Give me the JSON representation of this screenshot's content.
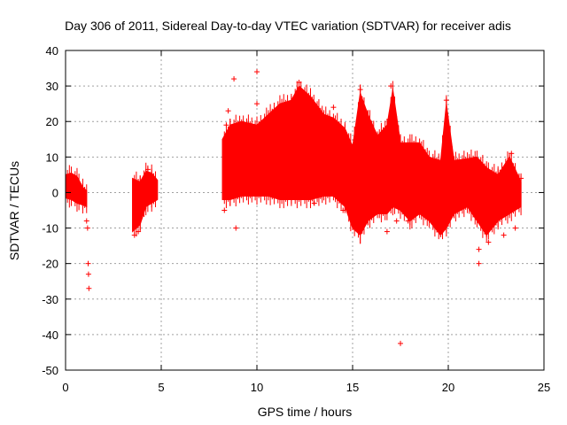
{
  "chart_data": {
    "type": "scatter",
    "title": "Day 306 of 2011, Sidereal Day-to-day VTEC variation (SDTVAR) for receiver adis",
    "xlabel": "GPS time / hours",
    "ylabel": "SDTVAR / TECUs",
    "xlim": [
      0,
      25
    ],
    "ylim": [
      -50,
      40
    ],
    "xticks": [
      0,
      5,
      10,
      15,
      20,
      25
    ],
    "yticks": [
      -50,
      -40,
      -30,
      -20,
      -10,
      0,
      10,
      20,
      30,
      40
    ],
    "grid": true,
    "series_color": "#ff0000",
    "envelope": [
      {
        "x": 0.0,
        "lo": -1.5,
        "hi": 5.0
      },
      {
        "x": 0.3,
        "lo": -2.0,
        "hi": 5.5
      },
      {
        "x": 0.6,
        "lo": -3.0,
        "hi": 4.5
      },
      {
        "x": 0.9,
        "lo": -3.5,
        "hi": 1.5
      },
      {
        "x": 1.1,
        "lo": -4.0,
        "hi": 0.5
      },
      {
        "gap": true
      },
      {
        "x": 3.5,
        "lo": -11.0,
        "hi": 4.0
      },
      {
        "x": 3.9,
        "lo": -9.0,
        "hi": 3.0
      },
      {
        "x": 4.2,
        "lo": -4.0,
        "hi": 6.0
      },
      {
        "x": 4.5,
        "lo": -3.0,
        "hi": 5.5
      },
      {
        "x": 4.8,
        "lo": -2.0,
        "hi": 3.5
      },
      {
        "gap": true
      },
      {
        "x": 8.2,
        "lo": -2.0,
        "hi": 15.0
      },
      {
        "x": 8.6,
        "lo": -2.0,
        "hi": 19.0
      },
      {
        "x": 9.2,
        "lo": -1.0,
        "hi": 20.0
      },
      {
        "x": 10.0,
        "lo": -1.0,
        "hi": 19.0
      },
      {
        "x": 10.6,
        "lo": -1.0,
        "hi": 22.0
      },
      {
        "x": 11.2,
        "lo": -2.0,
        "hi": 25.0
      },
      {
        "x": 11.8,
        "lo": -2.0,
        "hi": 26.0
      },
      {
        "x": 12.2,
        "lo": -2.0,
        "hi": 30.0
      },
      {
        "x": 12.8,
        "lo": -2.0,
        "hi": 27.0
      },
      {
        "x": 13.5,
        "lo": -1.0,
        "hi": 22.0
      },
      {
        "x": 14.0,
        "lo": -1.0,
        "hi": 21.0
      },
      {
        "x": 14.6,
        "lo": -4.0,
        "hi": 18.0
      },
      {
        "x": 15.0,
        "lo": -10.0,
        "hi": 13.0
      },
      {
        "x": 15.4,
        "lo": -12.0,
        "hi": 28.0
      },
      {
        "x": 15.8,
        "lo": -8.0,
        "hi": 22.0
      },
      {
        "x": 16.3,
        "lo": -6.0,
        "hi": 16.0
      },
      {
        "x": 16.8,
        "lo": -6.0,
        "hi": 19.0
      },
      {
        "x": 17.1,
        "lo": -4.0,
        "hi": 29.0
      },
      {
        "x": 17.5,
        "lo": -5.0,
        "hi": 14.0
      },
      {
        "x": 18.0,
        "lo": -8.0,
        "hi": 14.0
      },
      {
        "x": 18.5,
        "lo": -6.0,
        "hi": 14.0
      },
      {
        "x": 19.0,
        "lo": -8.0,
        "hi": 10.0
      },
      {
        "x": 19.6,
        "lo": -12.0,
        "hi": 9.0
      },
      {
        "x": 19.9,
        "lo": -10.0,
        "hi": 25.0
      },
      {
        "x": 20.3,
        "lo": -6.0,
        "hi": 9.0
      },
      {
        "x": 21.0,
        "lo": -4.0,
        "hi": 9.5
      },
      {
        "x": 21.5,
        "lo": -8.0,
        "hi": 10.0
      },
      {
        "x": 22.0,
        "lo": -12.0,
        "hi": 7.0
      },
      {
        "x": 22.6,
        "lo": -8.0,
        "hi": 5.0
      },
      {
        "x": 23.2,
        "lo": -6.0,
        "hi": 10.0
      },
      {
        "x": 23.8,
        "lo": -4.0,
        "hi": 3.0
      }
    ],
    "outliers": [
      {
        "x": 1.15,
        "y": -10.0
      },
      {
        "x": 1.18,
        "y": -20.0
      },
      {
        "x": 1.2,
        "y": -23.0
      },
      {
        "x": 1.22,
        "y": -27.0
      },
      {
        "x": 1.1,
        "y": -8.0
      },
      {
        "x": 3.6,
        "y": -12.0
      },
      {
        "x": 3.8,
        "y": -11.0
      },
      {
        "x": 4.3,
        "y": 6.5
      },
      {
        "x": 8.3,
        "y": -5.0
      },
      {
        "x": 8.4,
        "y": 19.0
      },
      {
        "x": 8.5,
        "y": 23.0
      },
      {
        "x": 8.8,
        "y": 32.0
      },
      {
        "x": 8.9,
        "y": -10.0
      },
      {
        "x": 10.0,
        "y": 34.0
      },
      {
        "x": 10.0,
        "y": 25.0
      },
      {
        "x": 12.2,
        "y": 31.0
      },
      {
        "x": 12.6,
        "y": 27.0
      },
      {
        "x": 13.0,
        "y": -3.0
      },
      {
        "x": 14.0,
        "y": 24.0
      },
      {
        "x": 14.5,
        "y": -5.0
      },
      {
        "x": 15.4,
        "y": 29.0
      },
      {
        "x": 16.8,
        "y": -11.0
      },
      {
        "x": 17.0,
        "y": 30.0
      },
      {
        "x": 17.3,
        "y": -8.0
      },
      {
        "x": 17.5,
        "y": -42.5
      },
      {
        "x": 17.9,
        "y": -8.0
      },
      {
        "x": 19.9,
        "y": 26.0
      },
      {
        "x": 21.6,
        "y": -16.0
      },
      {
        "x": 21.6,
        "y": -20.0
      },
      {
        "x": 22.1,
        "y": -14.0
      },
      {
        "x": 22.3,
        "y": 3.0
      },
      {
        "x": 22.9,
        "y": -12.0
      },
      {
        "x": 23.3,
        "y": 11.0
      },
      {
        "x": 23.5,
        "y": -10.0
      },
      {
        "x": 23.8,
        "y": 4.0
      }
    ]
  }
}
